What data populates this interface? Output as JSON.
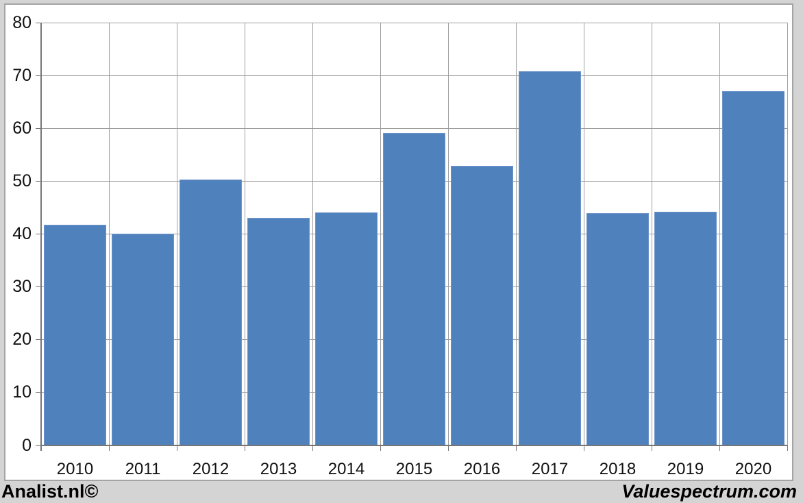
{
  "chart_data": {
    "type": "bar",
    "title": "",
    "categories": [
      "2010",
      "2011",
      "2012",
      "2013",
      "2014",
      "2015",
      "2016",
      "2017",
      "2018",
      "2019",
      "2020"
    ],
    "values": [
      41.7,
      40.1,
      50.3,
      43.0,
      44.1,
      59.1,
      52.9,
      70.8,
      44.0,
      44.2,
      67.0
    ],
    "xlabel": "",
    "ylabel": "",
    "ylim": [
      0,
      80
    ],
    "ytick_step": 10,
    "grid": "on",
    "legend": "none"
  },
  "colors": {
    "bar_fill": "#4f81bd",
    "bar_edge": "#6d95c9",
    "gridline": "#9d9d9d",
    "axis": "#767676",
    "panel_border": "#a4a4a4",
    "panel_bg": "#ffffff",
    "page_bg": "#d4d4d4",
    "text": "#111111"
  },
  "footer": {
    "left": "Analist.nl©",
    "right": "Valuespectrum.com"
  }
}
